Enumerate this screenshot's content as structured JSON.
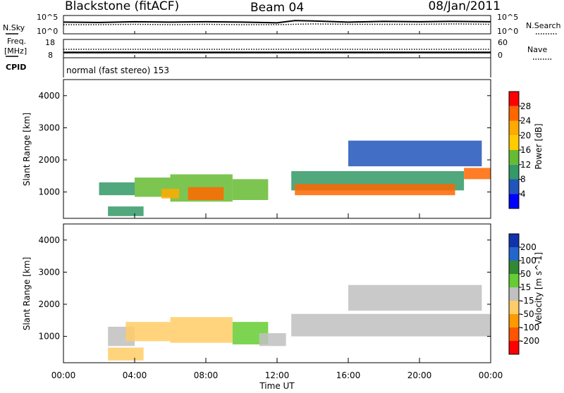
{
  "header": {
    "station": "Blackstone (fitACF)",
    "beam": "Beam 04",
    "date": "08/Jan/2011"
  },
  "noise_panel": {
    "left_label": "N.Sky",
    "left_ticks": [
      "10^5",
      "10^0"
    ],
    "right_label": "N.Search",
    "right_ticks": [
      "10^5",
      "10^0"
    ]
  },
  "freq_panel": {
    "left_label_line1": "Freq.",
    "left_label_line2": "[MHz]",
    "left_ticks": [
      "18",
      "8"
    ],
    "right_label": "Nave",
    "right_ticks": [
      "60",
      "0"
    ],
    "cpid_label": "CPID"
  },
  "cpid_text": "normal (fast stereo) 153",
  "x_axis": {
    "label": "Time UT",
    "ticks": [
      "00:00",
      "04:00",
      "08:00",
      "12:00",
      "16:00",
      "20:00",
      "00:00"
    ]
  },
  "power_colorbar": {
    "label": "Power [dB]",
    "ticks": [
      "28",
      "24",
      "20",
      "16",
      "12",
      "8",
      "4"
    ],
    "colors": [
      "#ff0000",
      "#ff6600",
      "#ffaa00",
      "#ffcc00",
      "#66bb33",
      "#339966",
      "#2255bb",
      "#0000ff"
    ]
  },
  "velocity_colorbar": {
    "label": "Velocity [m s^-1]",
    "ticks": [
      "200",
      "100",
      "50",
      "15",
      "-15",
      "-50",
      "-100",
      "-200"
    ],
    "colors": [
      "#1133aa",
      "#2266cc",
      "#338833",
      "#66cc33",
      "#c0c0c0",
      "#ffcc66",
      "#ff9900",
      "#ff5500",
      "#ff0000"
    ]
  },
  "chart_data": [
    {
      "type": "line",
      "panel": "noise",
      "x_units": "hours UT",
      "xlim": [
        0,
        24
      ],
      "series": [
        {
          "x": [
            0,
            2,
            4,
            6,
            8,
            10,
            12,
            13,
            14,
            16,
            18,
            20,
            22,
            24
          ],
          "values": [
            3.2,
            3.1,
            3.3,
            3.2,
            3.3,
            3.2,
            3.0,
            3.6,
            3.5,
            3.2,
            3.4,
            3.3,
            3.4,
            3.3
          ]
        },
        {
          "x": [
            0,
            2,
            4,
            6,
            8,
            10,
            12,
            14,
            16,
            18,
            20,
            22,
            24
          ],
          "values": [
            2.5,
            2.5,
            2.6,
            2.5,
            2.6,
            2.5,
            2.5,
            2.7,
            2.6,
            2.6,
            2.6,
            2.7,
            2.6
          ]
        }
      ]
    },
    {
      "type": "line",
      "panel": "frequency",
      "x_units": "hours UT",
      "xlim": [
        0,
        24
      ],
      "series": [
        {
          "x": [
            0,
            24
          ],
          "values": [
            10.9,
            10.9
          ]
        },
        {
          "x": [
            0,
            24
          ],
          "values": [
            12.6,
            12.6
          ]
        }
      ]
    },
    {
      "type": "heatmap",
      "panel": "power",
      "xlabel": "",
      "ylabel": "Slant Range [km]",
      "xlim": [
        0,
        24
      ],
      "ylim": [
        180,
        4500
      ],
      "yticks": [
        1000,
        2000,
        3000,
        4000
      ],
      "scale_label": "Power [dB]",
      "color_range": [
        0,
        30
      ],
      "regions": [
        {
          "t0": 2.0,
          "t1": 4.0,
          "r0": 900,
          "r1": 1300,
          "value": 9
        },
        {
          "t0": 4.0,
          "t1": 6.0,
          "r0": 850,
          "r1": 1450,
          "value": 14
        },
        {
          "t0": 6.0,
          "t1": 9.5,
          "r0": 700,
          "r1": 1550,
          "value": 15
        },
        {
          "t0": 7.0,
          "t1": 9.0,
          "r0": 750,
          "r1": 1150,
          "value": 26
        },
        {
          "t0": 5.5,
          "t1": 6.5,
          "r0": 800,
          "r1": 1100,
          "value": 22
        },
        {
          "t0": 9.5,
          "t1": 11.5,
          "r0": 750,
          "r1": 1400,
          "value": 12
        },
        {
          "t0": 2.5,
          "t1": 4.5,
          "r0": 250,
          "r1": 550,
          "value": 10
        },
        {
          "t0": 12.8,
          "t1": 22.5,
          "r0": 1050,
          "r1": 1650,
          "value": 9
        },
        {
          "t0": 13.0,
          "t1": 22.0,
          "r0": 900,
          "r1": 1250,
          "value": 24
        },
        {
          "t0": 22.5,
          "t1": 24.0,
          "r0": 1400,
          "r1": 1750,
          "value": 24
        },
        {
          "t0": 16.0,
          "t1": 23.5,
          "r0": 1800,
          "r1": 2600,
          "value": 7
        }
      ]
    },
    {
      "type": "heatmap",
      "panel": "velocity",
      "xlabel": "Time UT",
      "ylabel": "Slant Range [km]",
      "xlim": [
        0,
        24
      ],
      "ylim": [
        180,
        4500
      ],
      "yticks": [
        1000,
        2000,
        3000,
        4000
      ],
      "scale_label": "Velocity [m s^-1]",
      "color_range": [
        -200,
        200
      ],
      "regions": [
        {
          "t0": 2.5,
          "t1": 4.0,
          "r0": 700,
          "r1": 1300,
          "value": -10
        },
        {
          "t0": 3.5,
          "t1": 6.0,
          "r0": 850,
          "r1": 1450,
          "value": -60
        },
        {
          "t0": 6.0,
          "t1": 9.5,
          "r0": 800,
          "r1": 1600,
          "value": -50
        },
        {
          "t0": 9.5,
          "t1": 11.5,
          "r0": 750,
          "r1": 1450,
          "value": 25
        },
        {
          "t0": 11.0,
          "t1": 12.5,
          "r0": 700,
          "r1": 1100,
          "value": -5
        },
        {
          "t0": 2.5,
          "t1": 4.5,
          "r0": 250,
          "r1": 650,
          "value": -50
        },
        {
          "t0": 12.8,
          "t1": 24.0,
          "r0": 1000,
          "r1": 1700,
          "value": 0
        },
        {
          "t0": 16.0,
          "t1": 23.5,
          "r0": 1800,
          "r1": 2600,
          "value": -5
        }
      ]
    }
  ]
}
